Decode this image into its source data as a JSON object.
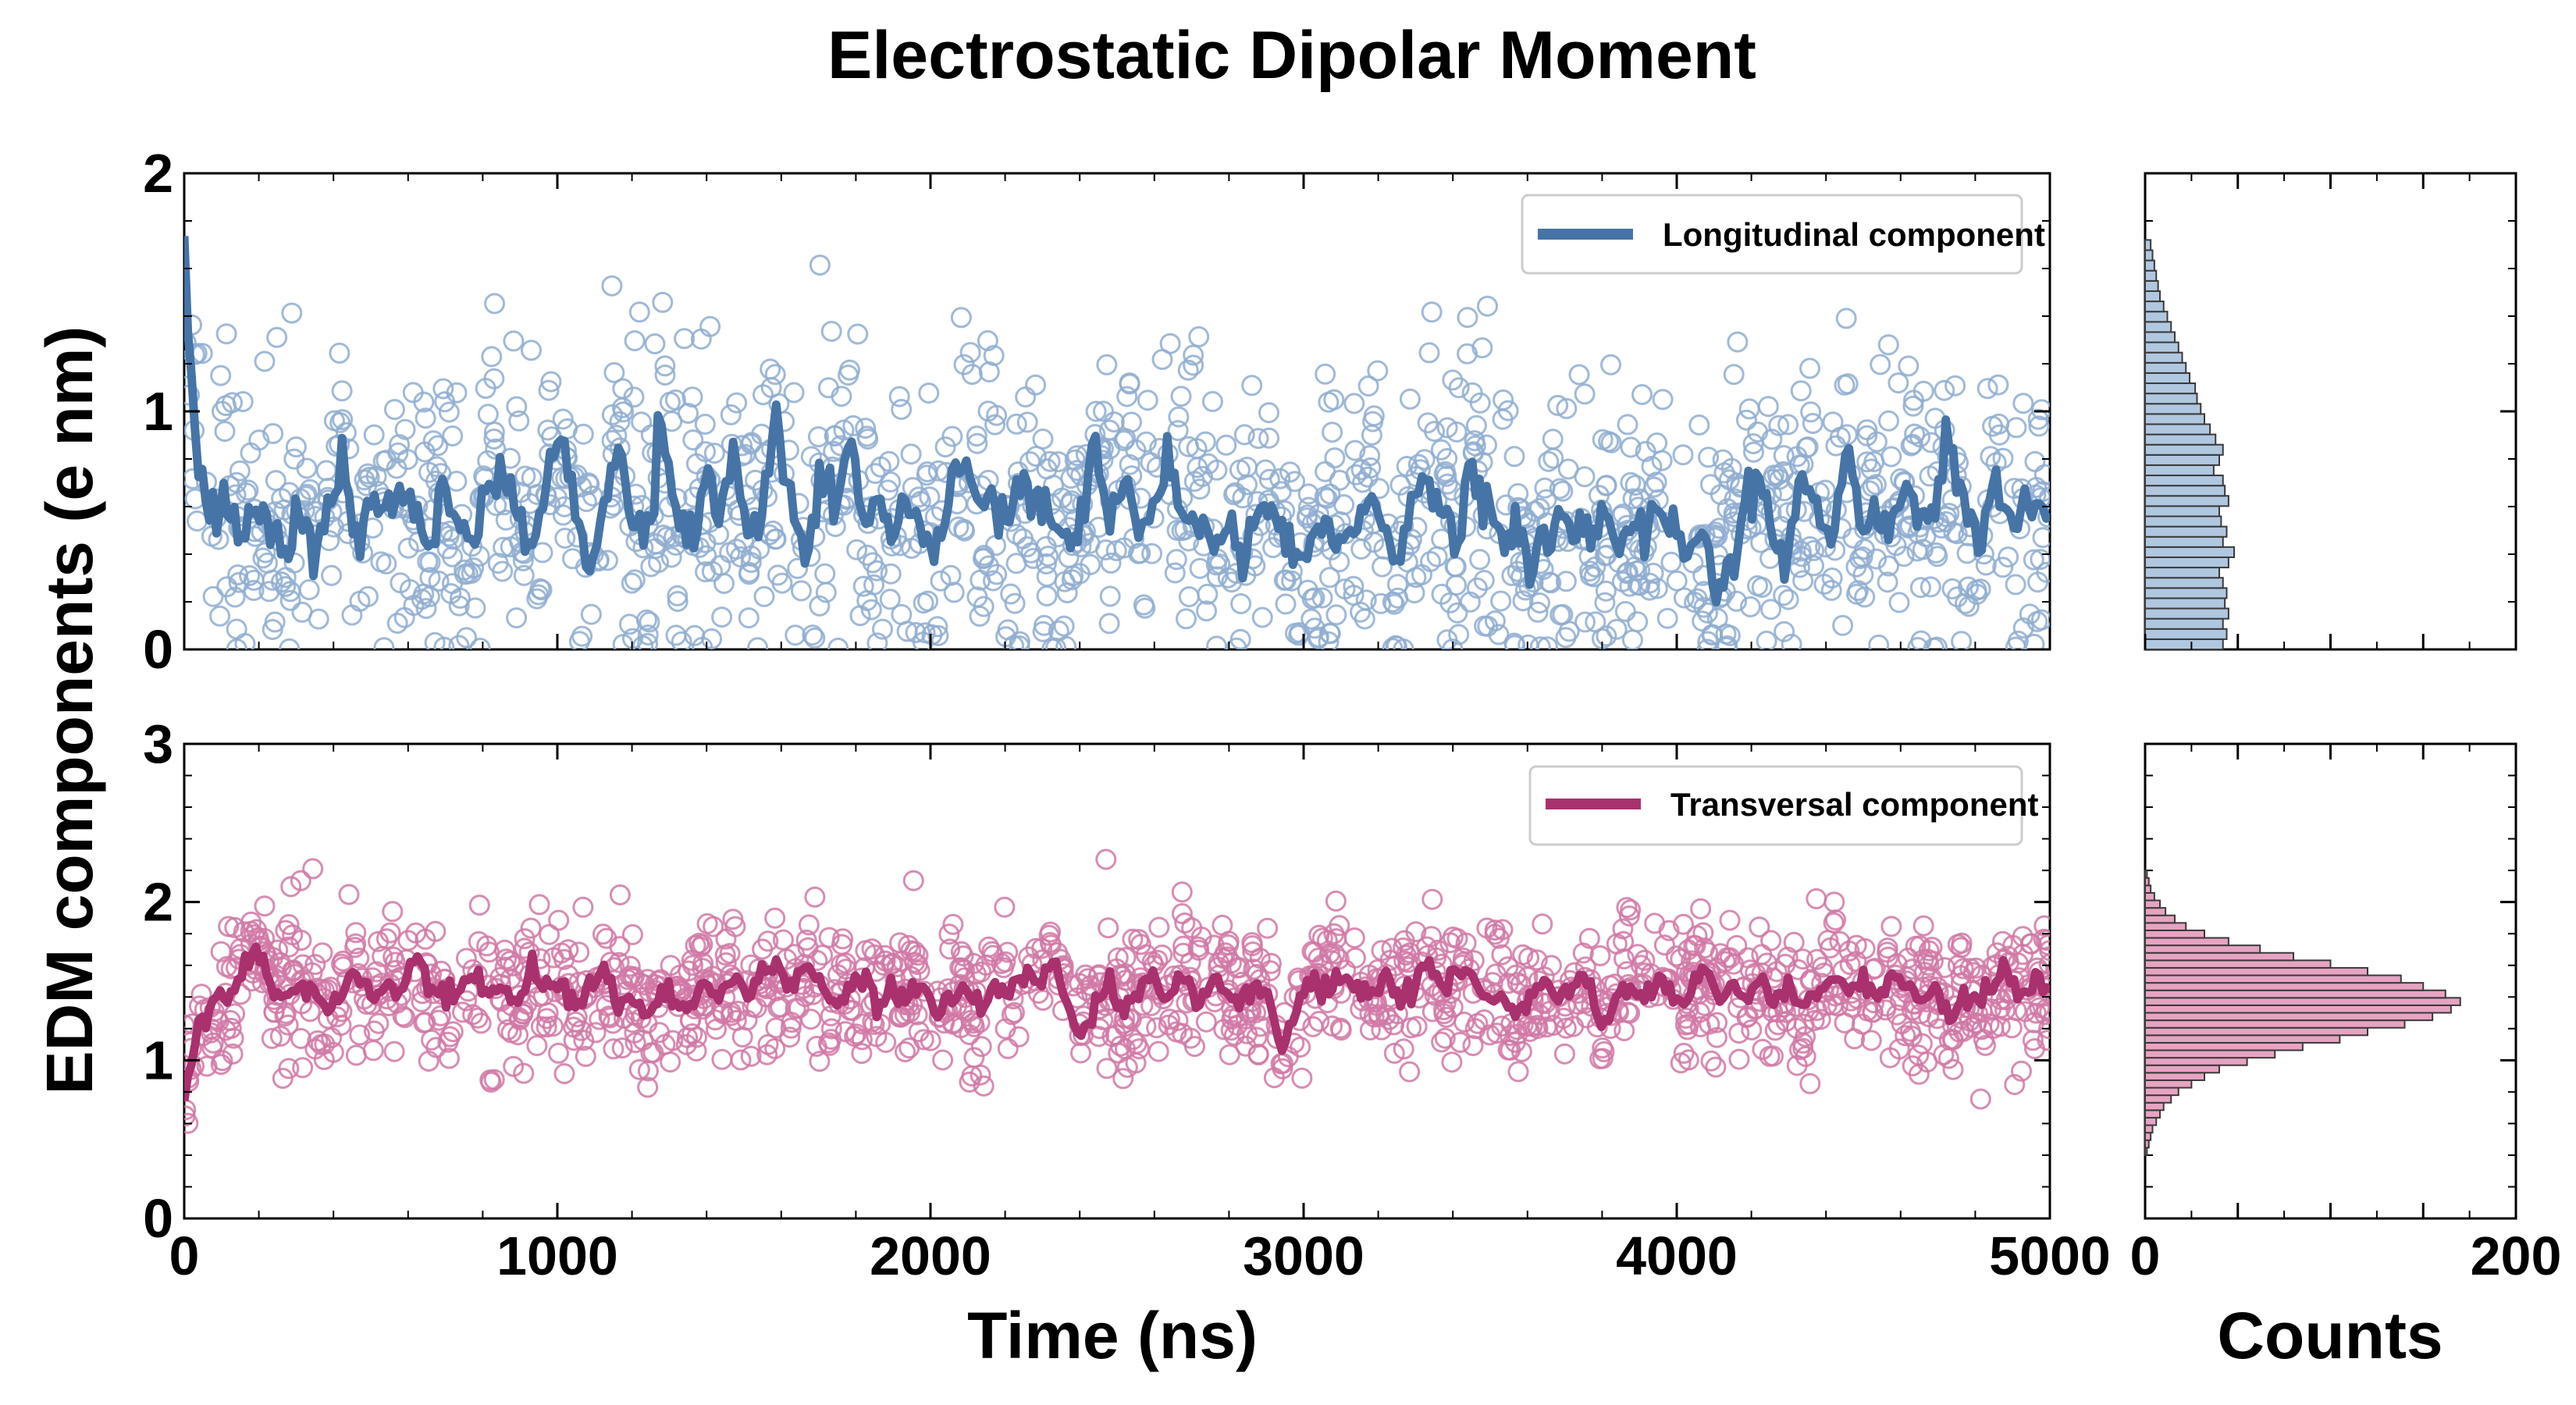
{
  "chart_data": {
    "type": "scatter",
    "title": "Electrostatic Dipolar Moment",
    "ylabel": "EDM components (e nm)",
    "xlabel": "Time (ns)",
    "hist_xlabel": "Counts",
    "x_ticks": [
      "0",
      "1000",
      "2000",
      "3000",
      "4000",
      "5000"
    ],
    "counts_ticks": [
      "0",
      "200"
    ],
    "xlim": [
      0,
      5000
    ],
    "counts_lim": [
      0,
      200
    ],
    "panels": [
      {
        "id": "top",
        "legend": "Longitudinal component",
        "ylim": [
          0,
          2
        ],
        "y_ticks": [
          "0",
          "1",
          "2"
        ],
        "colors": {
          "line": "#4674a6",
          "marker": "#8fadd0",
          "hist_fill": "#b0c7e0",
          "hist_edge": "#3a3a3a"
        },
        "series": {
          "name": "Longitudinal component",
          "x_start": 0,
          "x_end": 5000,
          "trend": [
            1.65,
            0.72,
            0.55,
            0.62,
            0.48,
            0.6,
            0.52,
            0.38,
            0.6,
            0.45,
            0.58,
            0.8,
            0.42,
            0.65,
            0.5,
            0.72,
            0.55,
            0.45,
            0.62,
            0.52,
            0.4,
            0.65,
            0.75,
            0.58,
            0.45,
            0.68,
            0.92,
            0.6,
            0.35,
            0.62,
            0.88,
            0.55,
            0.45,
            0.95,
            0.6,
            0.4,
            0.7,
            0.55,
            0.85,
            0.45,
            0.62,
            0.98,
            0.58,
            0.42,
            0.7,
            0.55,
            0.88,
            0.5,
            0.6,
            0.45,
            0.65,
            0.52,
            0.4,
            0.62,
            0.85,
            0.55,
            0.68,
            0.5,
            0.72,
            0.62,
            0.55,
            0.48,
            0.58,
            0.88,
            0.55,
            0.7,
            0.48,
            0.62,
            0.75,
            0.55,
            0.6,
            0.45,
            0.52,
            0.38,
            0.55,
            0.62,
            0.48,
            0.35,
            0.45,
            0.55,
            0.4,
            0.52,
            0.62,
            0.48,
            0.38,
            0.62,
            0.72,
            0.55,
            0.45,
            0.78,
            0.6,
            0.4,
            0.5,
            0.38,
            0.45,
            0.6,
            0.52,
            0.48,
            0.58,
            0.42,
            0.55,
            0.48,
            0.65,
            0.52,
            0.38,
            0.48,
            0.3,
            0.42,
            0.55,
            0.72,
            0.5,
            0.4,
            0.75,
            0.58,
            0.45,
            0.85,
            0.55,
            0.6,
            0.48,
            0.72,
            0.5,
            0.55,
            0.9,
            0.6,
            0.45,
            0.68,
            0.52,
            0.58,
            0.62,
            0.55
          ],
          "scatter_seed": 7,
          "scatter_count": 1400,
          "scatter_spread": 0.3
        },
        "histogram": {
          "bin_edges": [
            0.0,
            1.72
          ],
          "counts": [
            42,
            44,
            42,
            45,
            43,
            44,
            42,
            40,
            45,
            48,
            42,
            44,
            41,
            40,
            45,
            43,
            42,
            37,
            40,
            42,
            38,
            35,
            32,
            30,
            28,
            27,
            24,
            22,
            20,
            18,
            16,
            14,
            12,
            10,
            8,
            7,
            6,
            5,
            4,
            3
          ]
        }
      },
      {
        "id": "bottom",
        "legend": "Transversal component",
        "ylim": [
          0,
          3
        ],
        "y_ticks": [
          "0",
          "1",
          "2",
          "3"
        ],
        "colors": {
          "line": "#a8316e",
          "marker": "#d178a6",
          "hist_fill": "#e7a3c2",
          "hist_edge": "#3a3a3a"
        },
        "series": {
          "name": "Transversal component",
          "x_start": 0,
          "x_end": 5000,
          "trend": [
            0.78,
            1.25,
            1.35,
            1.4,
            1.55,
            1.7,
            1.45,
            1.38,
            1.5,
            1.42,
            1.3,
            1.45,
            1.55,
            1.35,
            1.48,
            1.42,
            1.62,
            1.5,
            1.38,
            1.45,
            1.52,
            1.4,
            1.48,
            1.32,
            1.6,
            1.45,
            1.52,
            1.38,
            1.42,
            1.58,
            1.35,
            1.45,
            1.25,
            1.4,
            1.38,
            1.35,
            1.48,
            1.42,
            1.55,
            1.4,
            1.52,
            1.58,
            1.45,
            1.62,
            1.48,
            1.35,
            1.42,
            1.55,
            1.3,
            1.45,
            1.38,
            1.52,
            1.28,
            1.4,
            1.45,
            1.35,
            1.5,
            1.42,
            1.55,
            1.48,
            1.62,
            1.4,
            1.15,
            1.35,
            1.48,
            1.3,
            1.45,
            1.52,
            1.4,
            1.55,
            1.38,
            1.5,
            1.45,
            1.35,
            1.48,
            1.4,
            1.05,
            1.38,
            1.5,
            1.42,
            1.55,
            1.45,
            1.38,
            1.52,
            1.4,
            1.48,
            1.62,
            1.42,
            1.55,
            1.5,
            1.35,
            1.45,
            1.28,
            1.4,
            1.52,
            1.38,
            1.45,
            1.55,
            1.2,
            1.42,
            1.48,
            1.38,
            1.52,
            1.45,
            1.35,
            1.58,
            1.42,
            1.5,
            1.4,
            1.48,
            1.35,
            1.45,
            1.3,
            1.42,
            1.55,
            1.38,
            1.48,
            1.4,
            1.52,
            1.45,
            1.38,
            1.5,
            1.25,
            1.42,
            1.35,
            1.48,
            1.55,
            1.4,
            1.52,
            1.45
          ],
          "scatter_seed": 11,
          "scatter_count": 1400,
          "scatter_spread": 0.22
        },
        "histogram": {
          "bin_edges": [
            0.4,
            2.2
          ],
          "counts": [
            1,
            2,
            3,
            4,
            6,
            8,
            10,
            14,
            18,
            25,
            32,
            40,
            55,
            70,
            85,
            105,
            120,
            140,
            155,
            165,
            170,
            162,
            150,
            138,
            120,
            100,
            80,
            62,
            45,
            32,
            22,
            16,
            11,
            8,
            5,
            3,
            2,
            1
          ]
        }
      }
    ]
  }
}
